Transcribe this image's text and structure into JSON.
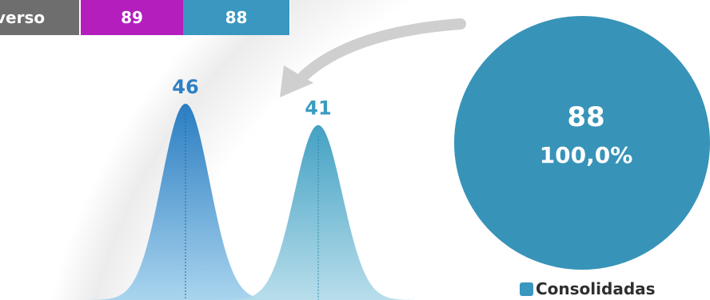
{
  "header_bars": {
    "universo_label": "verso",
    "value_magenta": "89",
    "value_blue": "88"
  },
  "circle": {
    "value": "88",
    "percent": "100,0%"
  },
  "legend": {
    "label": "Consolidadas"
  },
  "colors": {
    "gray_bar": "#6e6e6e",
    "magenta_bar": "#b31ebd",
    "blue_bar": "#3a97bf",
    "circle": "#3893b8",
    "peak1_label": "#2f7fc4",
    "peak2_label": "#3a9cc0"
  },
  "chart_data": {
    "type": "area",
    "series": [
      {
        "values": [
          46
        ]
      },
      {
        "values": [
          41
        ]
      }
    ]
  }
}
